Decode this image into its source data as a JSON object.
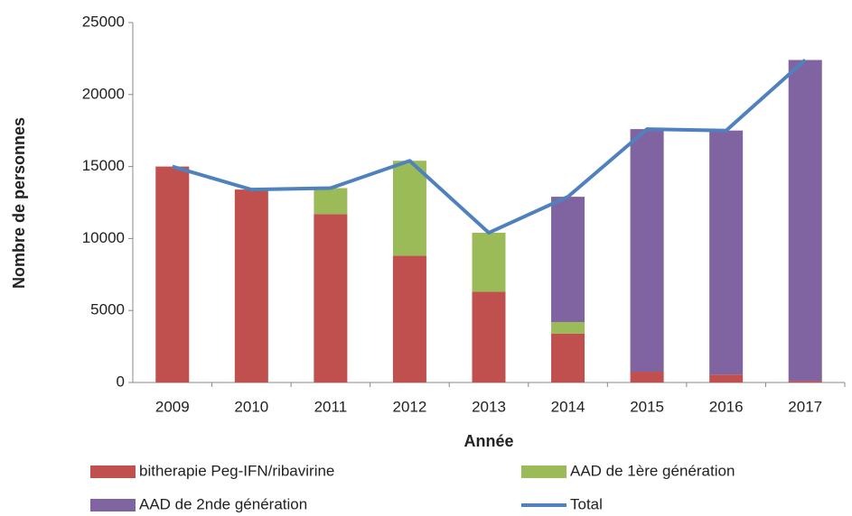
{
  "chart_data": {
    "type": "bar",
    "stacked": true,
    "x_label": "Année",
    "y_label": "Nombre de personnes",
    "categories": [
      "2009",
      "2010",
      "2011",
      "2012",
      "2013",
      "2014",
      "2015",
      "2016",
      "2017"
    ],
    "series": [
      {
        "name": "bitherapie Peg-IFN/ribavirine",
        "color": "#c0504d",
        "values": [
          15000,
          13400,
          11700,
          8800,
          6300,
          3400,
          750,
          550,
          100
        ]
      },
      {
        "name": "AAD de 1ère génération",
        "color": "#9bbb59",
        "values": [
          0,
          0,
          1800,
          6600,
          4100,
          800,
          0,
          0,
          0
        ]
      },
      {
        "name": "AAD de 2nde génération",
        "color": "#8064a2",
        "values": [
          0,
          0,
          0,
          0,
          0,
          8700,
          16850,
          16950,
          22300
        ]
      },
      {
        "name": "Total",
        "color": "#4f81bd",
        "type": "line",
        "values": [
          15000,
          13400,
          13500,
          15400,
          10400,
          12900,
          17600,
          17500,
          22400
        ]
      }
    ],
    "ylim": [
      0,
      25000
    ],
    "yticks": [
      0,
      5000,
      10000,
      15000,
      20000,
      25000
    ],
    "grid": false
  }
}
